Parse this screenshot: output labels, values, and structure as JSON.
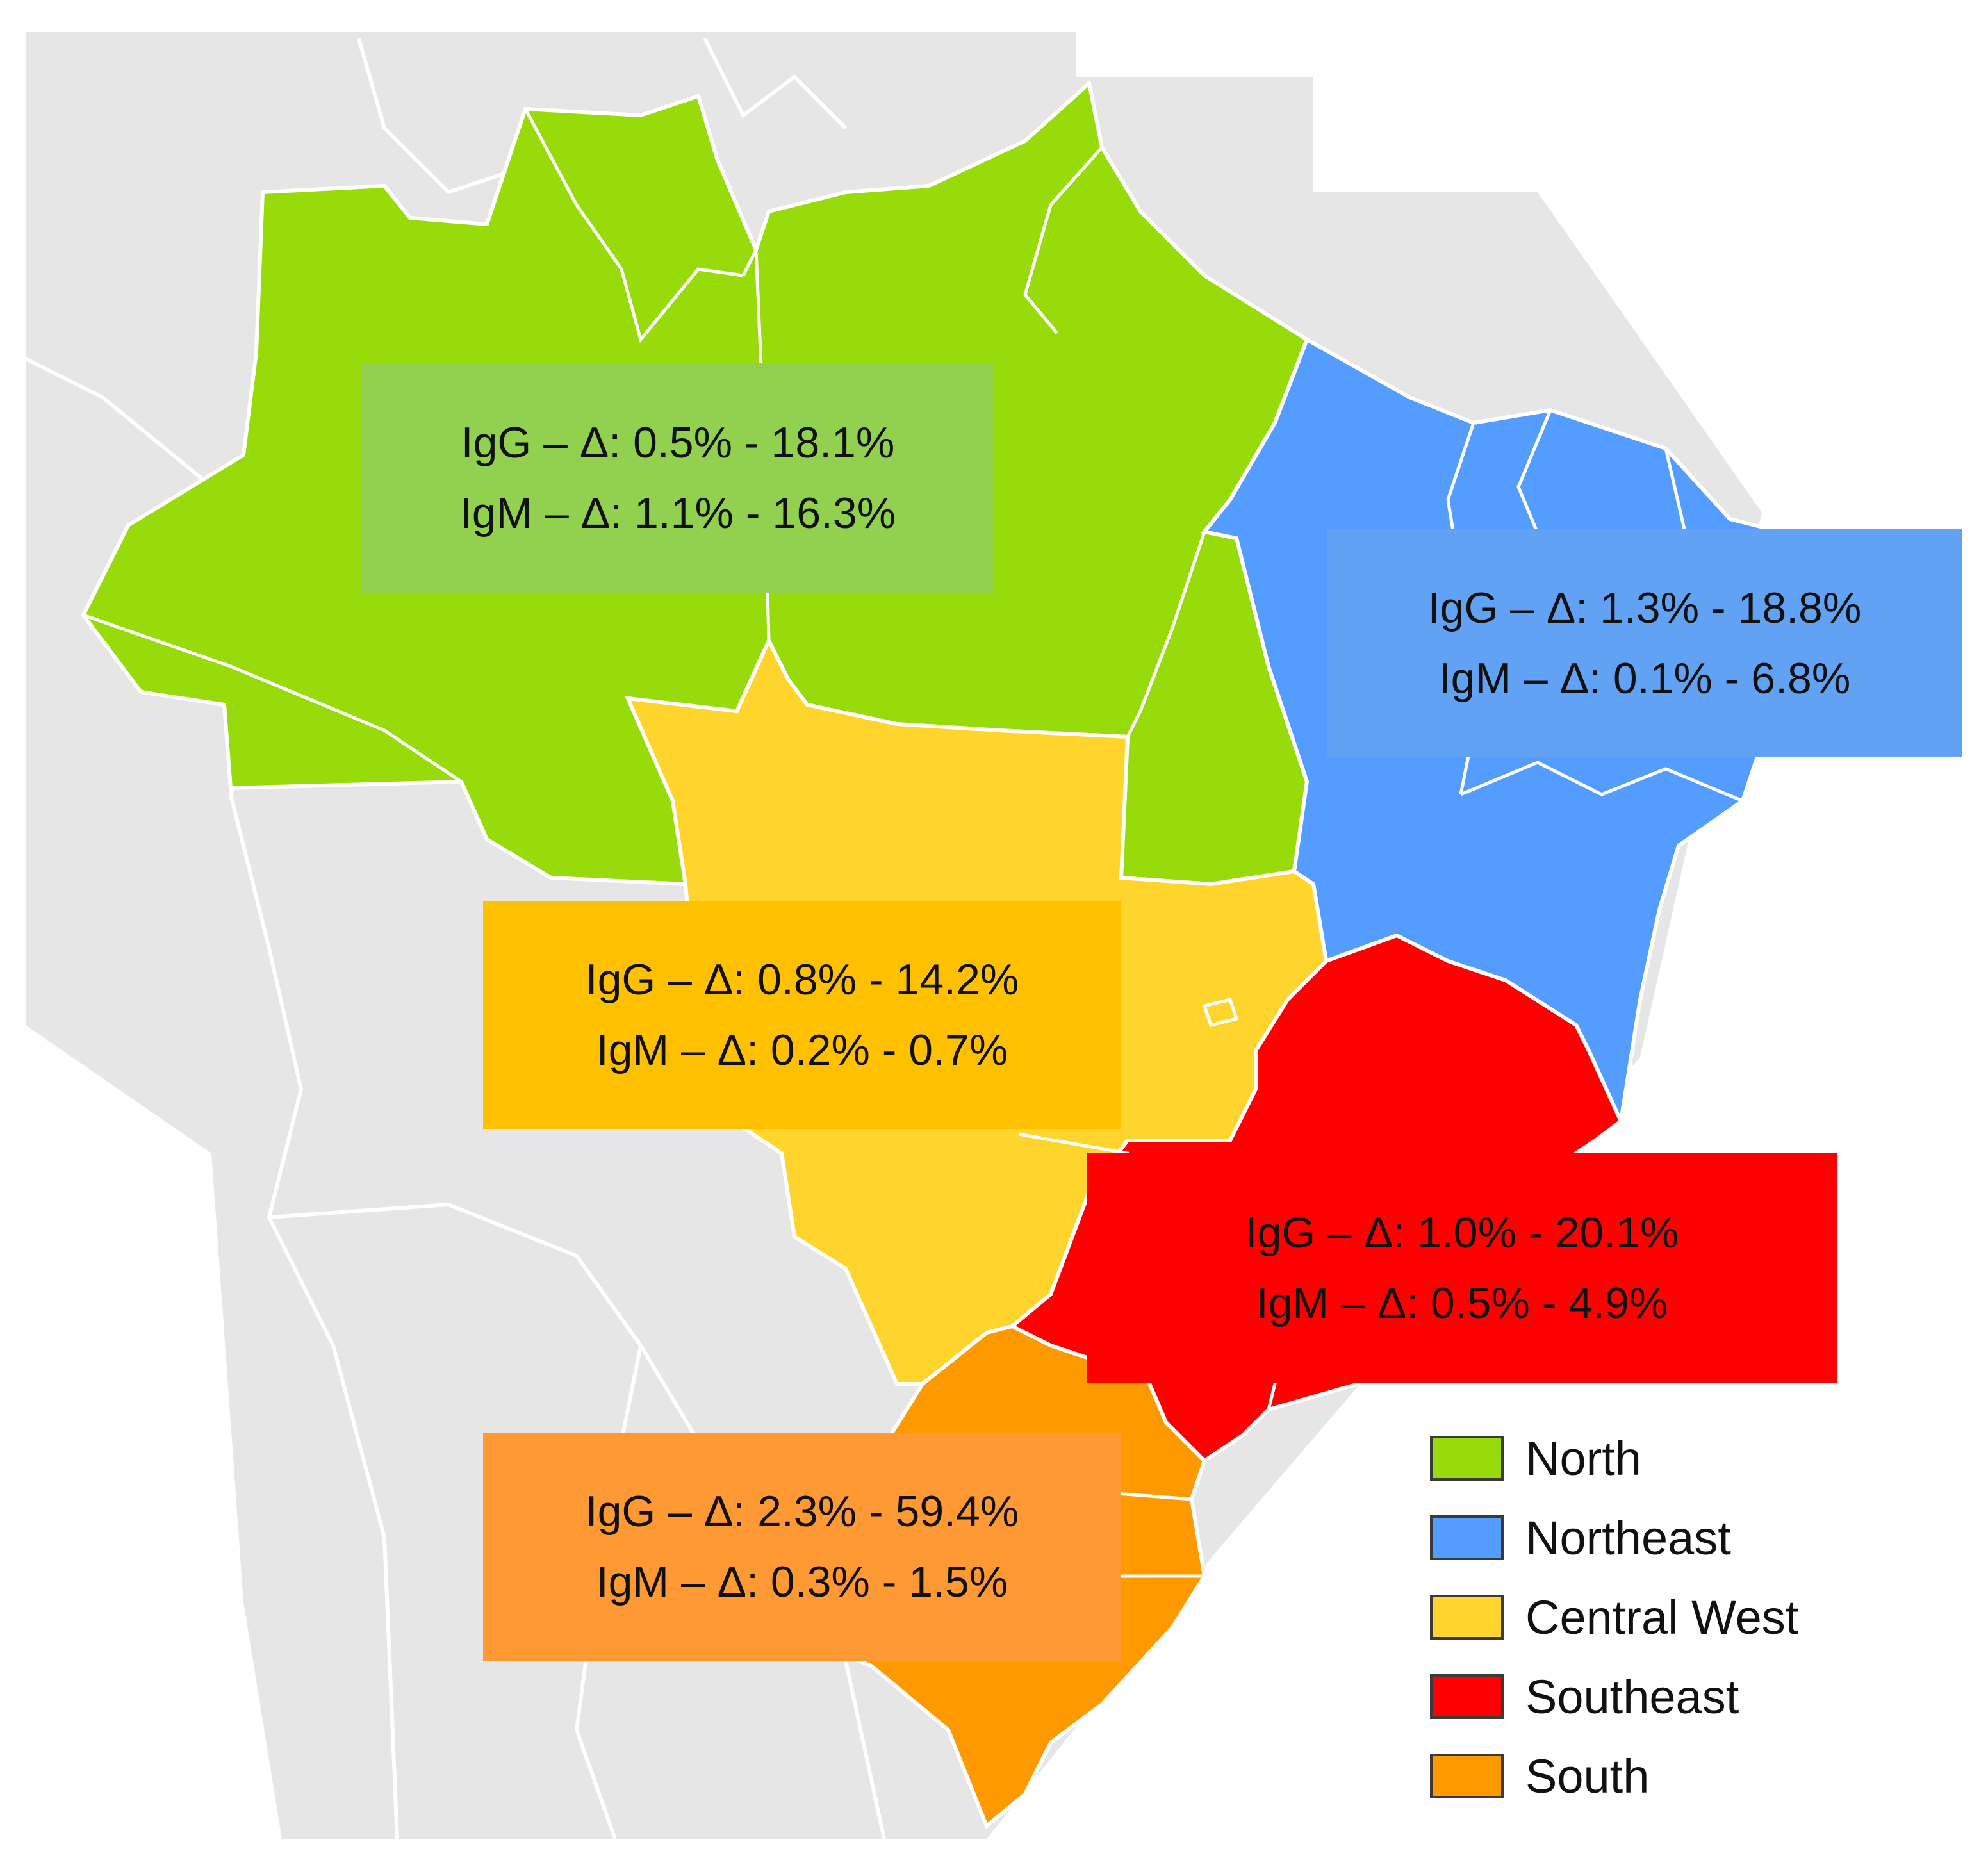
{
  "regions": [
    {
      "id": "north",
      "name": "North",
      "color": "#97DB0B",
      "box_color": "#92D050",
      "igg": "IgG – Δ: 0.5% - 18.1%",
      "igm": "IgM – Δ: 1.1% - 16.3%"
    },
    {
      "id": "northeast",
      "name": "Northeast",
      "color": "#559CFF",
      "box_color": "#62A2F5",
      "igg": "IgG – Δ: 1.3% - 18.8%",
      "igm": "IgM – Δ: 0.1% - 6.8%"
    },
    {
      "id": "central-west",
      "name": "Central West",
      "color": "#FFD42C",
      "box_color": "#FFC000",
      "igg": "IgG – Δ: 0.8% - 14.2%",
      "igm": "IgM – Δ: 0.2% - 0.7%"
    },
    {
      "id": "southeast",
      "name": "Southeast",
      "color": "#FF0000",
      "box_color": "#FF0000",
      "igg": "IgG – Δ: 1.0% - 20.1%",
      "igm": "IgM – Δ: 0.5% - 4.9%"
    },
    {
      "id": "south",
      "name": "South",
      "color": "#FF9900",
      "box_color": "#FF9933",
      "igg": "IgG – Δ: 2.3% - 59.4%",
      "igm": "IgM – Δ: 0.3% - 1.5%"
    }
  ],
  "background_color": "#E6E6E6"
}
